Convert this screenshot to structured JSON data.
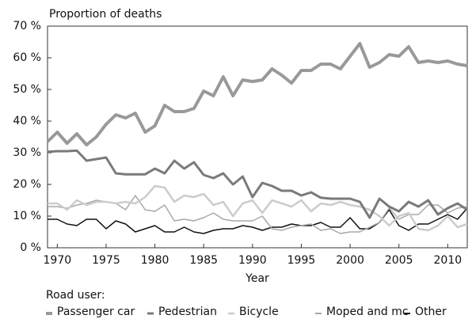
{
  "chart_data": {
    "type": "line",
    "y_axis_title": "Proportion of deaths",
    "x_axis_title": "Year",
    "legend_title": "Road user:",
    "x": [
      1969,
      1970,
      1971,
      1972,
      1973,
      1974,
      1975,
      1976,
      1977,
      1978,
      1979,
      1980,
      1981,
      1982,
      1983,
      1984,
      1985,
      1986,
      1987,
      1988,
      1989,
      1990,
      1991,
      1992,
      1993,
      1994,
      1995,
      1996,
      1997,
      1998,
      1999,
      2000,
      2001,
      2002,
      2003,
      2004,
      2005,
      2006,
      2007,
      2008,
      2009,
      2010,
      2011,
      2012
    ],
    "series": [
      {
        "name": "Passenger car",
        "color": "#999999",
        "width": 4,
        "values": [
          33.5,
          36.5,
          33,
          36,
          32.5,
          35,
          39,
          42,
          41,
          42.5,
          36.5,
          38.5,
          45,
          43,
          43,
          44,
          49.5,
          48,
          54,
          48,
          53,
          52.5,
          53,
          56.5,
          54.5,
          52,
          56,
          56,
          58,
          58,
          56.5,
          60.5,
          64.5,
          57,
          58.5,
          61,
          60.5,
          63.5,
          58.5,
          59,
          58.5,
          59,
          58,
          57.5
        ]
      },
      {
        "name": "Pedestrian",
        "color": "#7a7a7a",
        "width": 3,
        "values": [
          30.3,
          30.5,
          30.5,
          30.7,
          27.5,
          28,
          28.5,
          23.5,
          23.2,
          23.2,
          23.2,
          25,
          23.5,
          27.5,
          25,
          27,
          23,
          22,
          23.5,
          20,
          22.5,
          16,
          20.5,
          19.5,
          18,
          18,
          16.5,
          17.5,
          15.8,
          15.5,
          15.5,
          15.5,
          14.5,
          9.5,
          15.5,
          13,
          11.5,
          14.5,
          13,
          15,
          10.5,
          12.5,
          14,
          12
        ]
      },
      {
        "name": "Bicycle",
        "color": "#cccccc",
        "width": 2.5,
        "values": [
          14,
          14,
          12,
          15,
          13.5,
          14.5,
          14.5,
          14,
          14.5,
          14,
          16,
          19.5,
          19,
          14.5,
          16.5,
          16,
          17,
          13.5,
          14.5,
          10,
          14,
          15,
          11,
          15,
          14,
          13,
          15,
          11.5,
          14,
          13.5,
          14.5,
          13.5,
          13,
          12,
          10,
          7,
          10,
          11,
          6,
          5.5,
          7,
          10,
          6.5,
          7.5
        ]
      },
      {
        "name": "Moped and mc",
        "color": "#a8a8a8",
        "width": 1.5,
        "values": [
          13,
          13,
          12.5,
          13.5,
          14,
          15,
          14.5,
          14,
          12,
          16.5,
          12,
          11.5,
          13.5,
          8.5,
          9,
          8.5,
          9.5,
          11,
          9,
          8.5,
          8.5,
          8.5,
          10,
          6,
          5.5,
          6.5,
          7,
          7.5,
          5.5,
          6,
          4.5,
          5,
          5,
          6.5,
          8,
          12.5,
          9,
          10.5,
          10.5,
          13.5,
          13.5,
          11,
          12.5,
          13
        ]
      },
      {
        "name": "Other",
        "color": "#111111",
        "width": 1.5,
        "values": [
          9,
          9,
          7.5,
          7,
          9,
          9,
          6,
          8.5,
          7.5,
          5,
          6,
          7,
          5,
          5,
          6.5,
          5,
          4.5,
          5.5,
          6,
          6,
          7,
          6.5,
          5.5,
          6.5,
          6.5,
          7.5,
          7,
          7,
          8,
          6.5,
          6.5,
          9.5,
          6,
          6,
          8,
          12,
          7,
          5.5,
          7.5,
          7.5,
          9,
          10.5,
          9,
          12.5
        ]
      }
    ],
    "xlim": [
      1969,
      2012
    ],
    "xticks": [
      1970,
      1975,
      1980,
      1985,
      1990,
      1995,
      2000,
      2005,
      2010
    ],
    "ylim": [
      0,
      70
    ],
    "yticks": [
      {
        "value": 0,
        "label": "0 %"
      },
      {
        "value": 10,
        "label": "10 %"
      },
      {
        "value": 20,
        "label": "20 %"
      },
      {
        "value": 30,
        "label": "30 %"
      },
      {
        "value": 40,
        "label": "40 %"
      },
      {
        "value": 50,
        "label": "50 %"
      },
      {
        "value": 60,
        "label": "60 %"
      },
      {
        "value": 70,
        "label": "70 %"
      }
    ],
    "grid": false
  }
}
